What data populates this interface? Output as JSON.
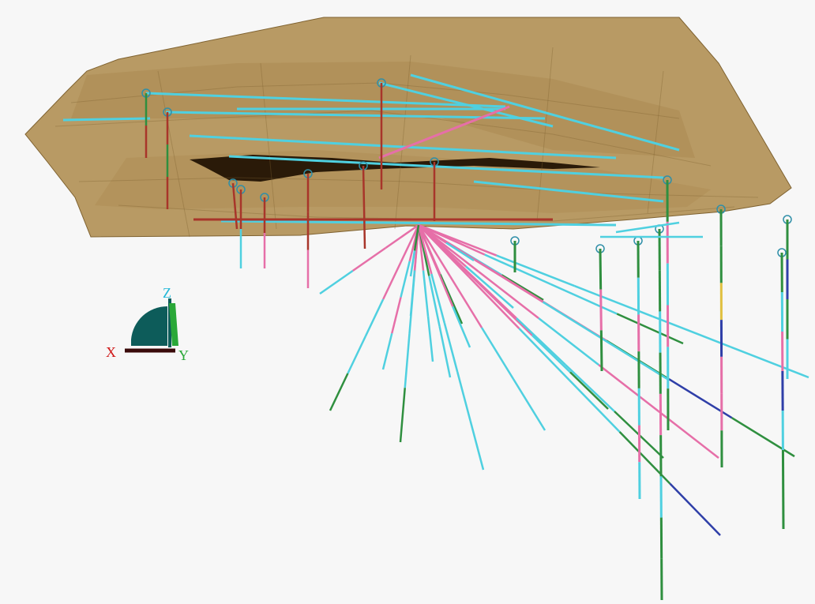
{
  "viewer": {
    "axis_triad": {
      "x_label": "X",
      "y_label": "Y",
      "z_label": "Z",
      "x_color": "#d01818",
      "y_color": "#2aa838",
      "z_color": "#22b8d8",
      "marker_color": "#0d5c5a"
    }
  },
  "colors": {
    "surface_fill": "#b89a64",
    "surface_dark": "#7f6230",
    "surface_shade": "#a8874e",
    "cavity": "#2a1a08",
    "collar": "#2f8fa8",
    "hole_colors": [
      "#e66fa8",
      "#4fd0e0",
      "#2f8f3f",
      "#a8352a",
      "#2f3fa8",
      "#e0c040"
    ]
  }
}
